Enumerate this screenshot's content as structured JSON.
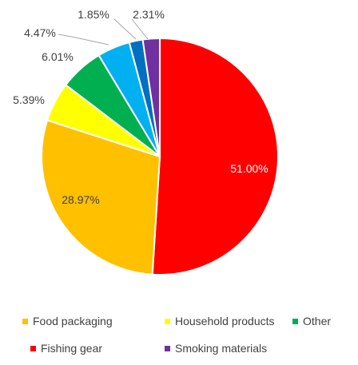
{
  "chart_data": {
    "type": "pie",
    "title": "",
    "slices": [
      {
        "name": "Fishing gear",
        "value": 51.0,
        "label": "51.00%",
        "color": "#ff0000"
      },
      {
        "name": "Food packaging",
        "value": 28.97,
        "label": "28.97%",
        "color": "#ffc000"
      },
      {
        "name": "Household products",
        "value": 5.39,
        "label": "5.39%",
        "color": "#ffff00"
      },
      {
        "name": "Other",
        "value": 6.01,
        "label": "6.01%",
        "color": "#00b050"
      },
      {
        "name": "",
        "value": 4.47,
        "label": "4.47%",
        "color": "#00b0f0"
      },
      {
        "name": "",
        "value": 1.85,
        "label": "1.85%",
        "color": "#0070c0"
      },
      {
        "name": "Smoking materials",
        "value": 2.31,
        "label": "2.31%",
        "color": "#7030a0"
      }
    ],
    "legend": {
      "placement": "bottom",
      "items": [
        {
          "label": "Food packaging",
          "color": "#ffc000"
        },
        {
          "label": "Household products",
          "color": "#ffff00"
        },
        {
          "label": "Other",
          "color": "#00b050"
        },
        {
          "label": "Fishing gear",
          "color": "#ff0000"
        },
        {
          "label": "Smoking materials",
          "color": "#7030a0"
        }
      ]
    }
  }
}
